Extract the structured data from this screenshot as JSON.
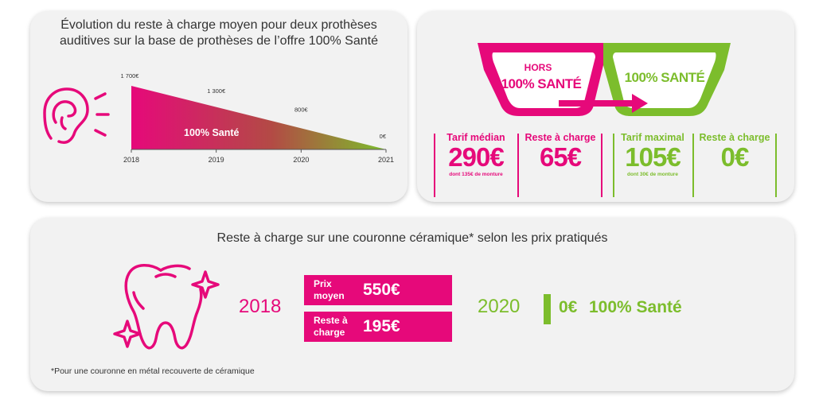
{
  "colors": {
    "pink": "#e6097a",
    "green": "#7cbd2c",
    "card": "#f2f2f2"
  },
  "hearing": {
    "title_line1": "Évolution du reste à charge moyen pour deux prothèses",
    "title_line2": "auditives sur la base de prothèses de l’offre 100% Santé",
    "icon": "ear-icon",
    "area_label": "100% Santé"
  },
  "chart_data": {
    "type": "area",
    "x": [
      "2018",
      "2019",
      "2020",
      "2021"
    ],
    "values": [
      1700,
      1300,
      800,
      0
    ],
    "value_labels": [
      "1 700€",
      "1 300€",
      "800€",
      "0€"
    ],
    "ylim": [
      0,
      1700
    ],
    "annotations": [
      "100% Santé"
    ],
    "grid": false
  },
  "glasses": {
    "lens_left_line1": "HORS",
    "lens_left_line2": "100% SANTÉ",
    "lens_right": "100% SANTÉ",
    "stats": [
      {
        "label": "Tarif médian",
        "value": "290€",
        "note": "dont 135€ de monture",
        "color": "pink"
      },
      {
        "label": "Reste à charge",
        "value": "65€",
        "note": "",
        "color": "pink"
      },
      {
        "label": "Tarif maximal",
        "value": "105€",
        "note": "dont 30€ de monture",
        "color": "green"
      },
      {
        "label": "Reste à charge",
        "value": "0€",
        "note": "",
        "color": "green"
      }
    ]
  },
  "crown": {
    "title": "Reste à charge sur une couronne céramique* selon les prix pratiqués",
    "icon": "tooth-icon",
    "year_2018": "2018",
    "box1_label_1": "Prix",
    "box1_label_2": "moyen",
    "box1_value": "550€",
    "box2_label_1": "Reste à",
    "box2_label_2": "charge",
    "box2_value": "195€",
    "year_2020": "2020",
    "value_2020": "0€",
    "label_2020": "100% Santé",
    "footnote": "*Pour une couronne en métal recouverte de céramique"
  }
}
